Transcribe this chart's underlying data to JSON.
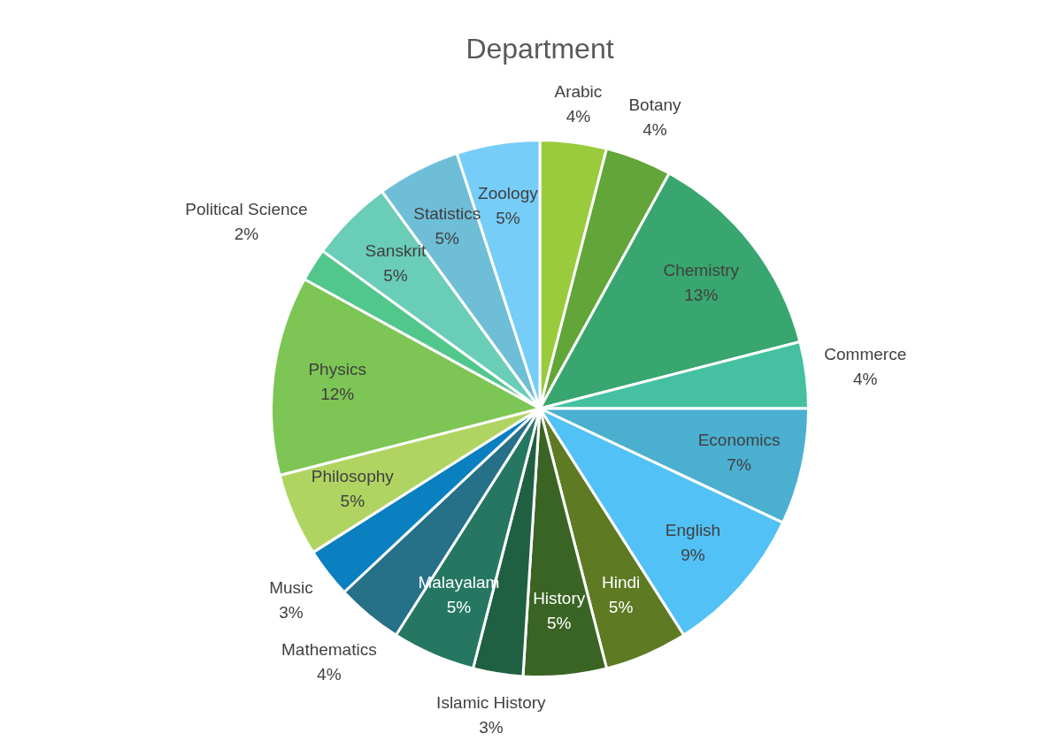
{
  "chart_data": {
    "type": "pie",
    "title": "Department",
    "categories": [
      "Arabic",
      "Botany",
      "Chemistry",
      "Commerce",
      "Economics",
      "English",
      "Hindi",
      "History",
      "Islamic History",
      "Malayalam",
      "Mathematics",
      "Music",
      "Philosophy",
      "Physics",
      "Political Science",
      "Sanskrit",
      "Statistics",
      "Zoology"
    ],
    "values": [
      4,
      4,
      13,
      4,
      7,
      9,
      5,
      5,
      3,
      5,
      4,
      3,
      5,
      12,
      2,
      5,
      5,
      5
    ],
    "value_labels": [
      "4%",
      "4%",
      "13%",
      "4%",
      "7%",
      "9%",
      "5%",
      "5%",
      "3%",
      "5%",
      "4%",
      "3%",
      "5%",
      "12%",
      "2%",
      "5%",
      "5%",
      "5%"
    ],
    "colors": [
      "#9acb3c",
      "#62a539",
      "#38a66e",
      "#45c1a2",
      "#4bafd0",
      "#52c1f5",
      "#5e7a22",
      "#3a6424",
      "#206042",
      "#257762",
      "#267088",
      "#0a80c0",
      "#b0d462",
      "#7dc554",
      "#52c78c",
      "#69cdb8",
      "#6fbed8",
      "#76cdf8"
    ],
    "legend": false
  }
}
